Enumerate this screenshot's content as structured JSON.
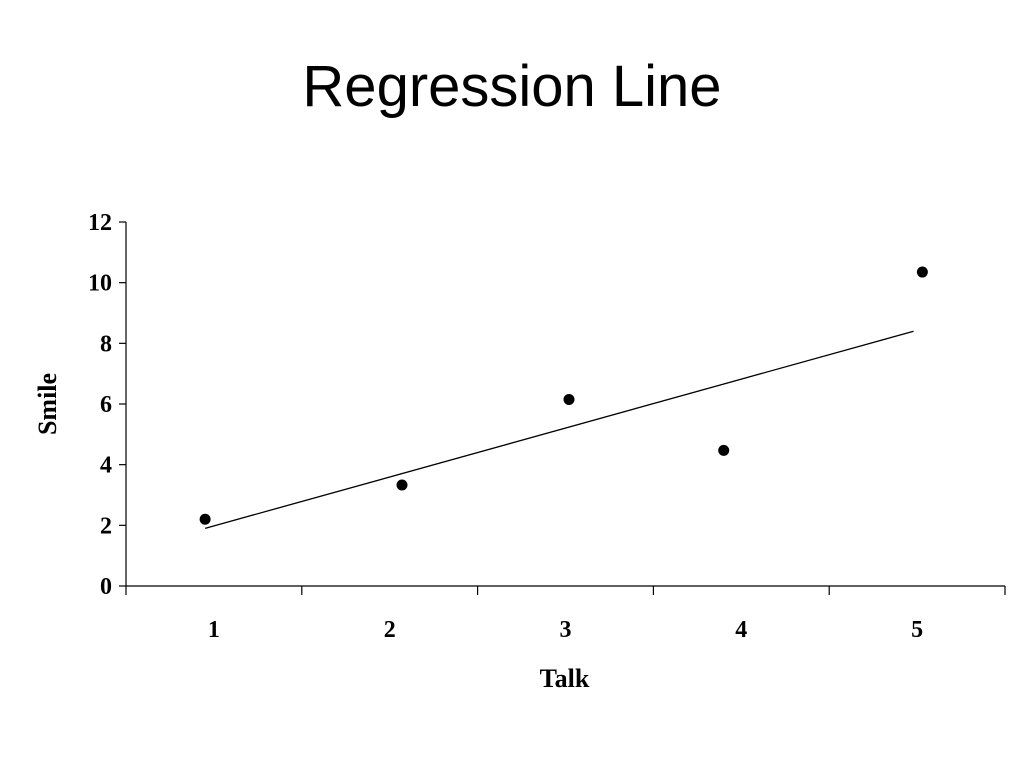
{
  "slide": {
    "title": "Regression Line"
  },
  "chart_data": {
    "type": "scatter",
    "xlabel": "Talk",
    "ylabel": "Smile",
    "x_categories": [
      "1",
      "2",
      "3",
      "4",
      "5"
    ],
    "ylim": [
      0,
      12
    ],
    "y_ticks": [
      0,
      2,
      4,
      6,
      8,
      10,
      12
    ],
    "grid": false,
    "points": [
      {
        "x": 0.95,
        "y": 2.2
      },
      {
        "x": 2.07,
        "y": 3.33
      },
      {
        "x": 3.02,
        "y": 6.15
      },
      {
        "x": 3.9,
        "y": 4.47
      },
      {
        "x": 5.03,
        "y": 10.35
      }
    ],
    "regression_line": {
      "x_start": 0.95,
      "y_start": 1.9,
      "x_end": 4.98,
      "y_end": 8.4
    },
    "colors": {
      "points": "#000000",
      "line": "#000000",
      "axes": "#000000"
    }
  }
}
